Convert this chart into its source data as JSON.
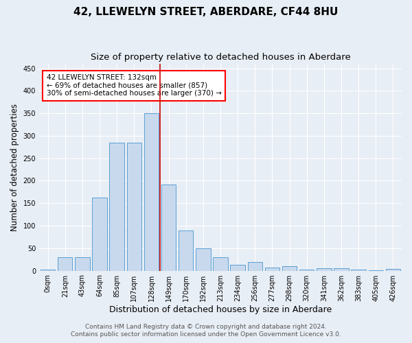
{
  "title": "42, LLEWELYN STREET, ABERDARE, CF44 8HU",
  "subtitle": "Size of property relative to detached houses in Aberdare",
  "xlabel": "Distribution of detached houses by size in Aberdare",
  "ylabel": "Number of detached properties",
  "bar_labels": [
    "0sqm",
    "21sqm",
    "43sqm",
    "64sqm",
    "85sqm",
    "107sqm",
    "128sqm",
    "149sqm",
    "170sqm",
    "192sqm",
    "213sqm",
    "234sqm",
    "256sqm",
    "277sqm",
    "298sqm",
    "320sqm",
    "341sqm",
    "362sqm",
    "383sqm",
    "405sqm",
    "426sqm"
  ],
  "bar_values": [
    2,
    30,
    30,
    163,
    285,
    285,
    350,
    192,
    90,
    50,
    30,
    13,
    19,
    7,
    10,
    3,
    5,
    5,
    2,
    1,
    4
  ],
  "bar_color": "#c8d9ed",
  "bar_edge_color": "#5a9fd4",
  "background_color": "#e8eef5",
  "grid_color": "#ffffff",
  "ylim": [
    0,
    460
  ],
  "yticks": [
    0,
    50,
    100,
    150,
    200,
    250,
    300,
    350,
    400,
    450
  ],
  "vline_x_index": 6,
  "vline_color": "#cc0000",
  "annotation_text": "42 LLEWELYN STREET: 132sqm\n← 69% of detached houses are smaller (857)\n30% of semi-detached houses are larger (370) →",
  "footer_line1": "Contains HM Land Registry data © Crown copyright and database right 2024.",
  "footer_line2": "Contains public sector information licensed under the Open Government Licence v3.0.",
  "title_fontsize": 11,
  "subtitle_fontsize": 9.5,
  "xlabel_fontsize": 9,
  "ylabel_fontsize": 8.5,
  "tick_fontsize": 7,
  "annotation_fontsize": 7.5,
  "footer_fontsize": 6.5
}
